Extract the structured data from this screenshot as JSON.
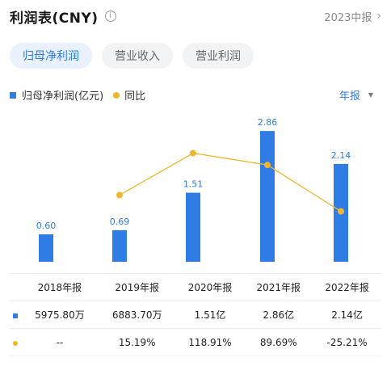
{
  "header": {
    "title": "利润表(CNY)",
    "info_icon": "i",
    "period": "2023中报",
    "chevron": "›"
  },
  "tabs": [
    {
      "label": "归母净利润",
      "active": true
    },
    {
      "label": "营业收入",
      "active": false
    },
    {
      "label": "营业利润",
      "active": false
    }
  ],
  "legend": {
    "bar_label": "归母净利润(亿元)",
    "line_label": "同比"
  },
  "report_type": {
    "label": "年报",
    "caret": "▼"
  },
  "colors": {
    "bar": "#2f7de4",
    "line": "#f0b62e",
    "positive": "#e0474c",
    "negative": "#1aa06a",
    "accent": "#2d7be5"
  },
  "chart_data": {
    "type": "bar",
    "categories": [
      "2018年报",
      "2019年报",
      "2020年报",
      "2021年报",
      "2022年报"
    ],
    "series": [
      {
        "name": "归母净利润(亿元)",
        "type": "bar",
        "values": [
          0.6,
          0.69,
          1.51,
          2.86,
          2.14
        ]
      },
      {
        "name": "同比",
        "type": "line",
        "values": [
          null,
          15.19,
          118.91,
          89.69,
          -25.21
        ]
      }
    ],
    "data_labels": [
      "0.60",
      "0.69",
      "1.51",
      "2.86",
      "2.14"
    ]
  },
  "table": {
    "headers": [
      "2018年报",
      "2019年报",
      "2020年报",
      "2021年报",
      "2022年报"
    ],
    "profit_row": [
      "5975.80万",
      "6883.70万",
      "1.51亿",
      "2.86亿",
      "2.14亿"
    ],
    "yoy_row": [
      "--",
      "15.19%",
      "118.91%",
      "89.69%",
      "-25.21%"
    ]
  }
}
